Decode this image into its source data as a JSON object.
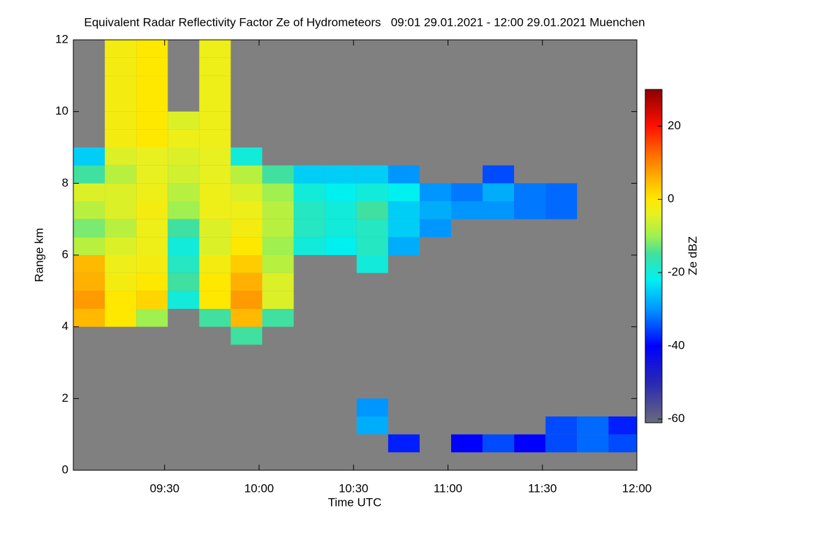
{
  "chart_data": {
    "type": "heatmap",
    "title": "Equivalent Radar Reflectivity Factor Ze of Hydrometeors   09:01 29.01.2021 - 12:00 29.01.2021 Muenchen",
    "x_label": "Time UTC",
    "y_label": "Range km",
    "colorbar_label": "Ze dBZ",
    "xlim": [
      541,
      720
    ],
    "xticks": [
      {
        "value": 570,
        "label": "09:30"
      },
      {
        "value": 600,
        "label": "10:00"
      },
      {
        "value": 630,
        "label": "10:30"
      },
      {
        "value": 660,
        "label": "11:00"
      },
      {
        "value": 690,
        "label": "11:30"
      },
      {
        "value": 720,
        "label": "12:00"
      }
    ],
    "ylim": [
      0,
      12
    ],
    "yticks": [
      0,
      2,
      4,
      6,
      8,
      10,
      12
    ],
    "zlim": [
      -61,
      30
    ],
    "zticks": [
      20,
      0,
      -20,
      -40,
      -60
    ],
    "plot_background": "#808080",
    "colormap": [
      {
        "value": -61,
        "color": "#6a6a7a"
      },
      {
        "value": -50,
        "color": "#2828b4"
      },
      {
        "value": -40,
        "color": "#0000ff"
      },
      {
        "value": -30,
        "color": "#0096ff"
      },
      {
        "value": -22,
        "color": "#00f0f0"
      },
      {
        "value": -15,
        "color": "#40e0a0"
      },
      {
        "value": -10,
        "color": "#a0f050"
      },
      {
        "value": -4,
        "color": "#e8f020"
      },
      {
        "value": 0,
        "color": "#ffe800"
      },
      {
        "value": 6,
        "color": "#ffb000"
      },
      {
        "value": 12,
        "color": "#ff7000"
      },
      {
        "value": 20,
        "color": "#ff1000"
      },
      {
        "value": 30,
        "color": "#8c0000"
      }
    ],
    "x": [
      541,
      551,
      561,
      571,
      581,
      591,
      601,
      611,
      621,
      631,
      641,
      651,
      661,
      671,
      681,
      691,
      701,
      711
    ],
    "y": [
      0,
      0.5,
      1,
      1.5,
      2,
      2.5,
      3,
      3.5,
      4,
      4.5,
      5,
      5.5,
      6,
      6.5,
      7,
      7.5,
      8,
      8.5,
      9,
      9.5,
      10,
      10.5,
      11,
      11.5
    ],
    "z": [
      [
        null,
        null,
        null,
        null,
        null,
        null,
        null,
        null,
        null,
        null,
        null,
        null,
        null,
        null,
        null,
        null,
        null,
        null
      ],
      [
        null,
        null,
        null,
        null,
        null,
        null,
        null,
        null,
        null,
        null,
        -38,
        null,
        -40,
        -35,
        -40,
        -35,
        -33,
        -35
      ],
      [
        null,
        null,
        null,
        null,
        null,
        null,
        null,
        null,
        null,
        -28,
        null,
        null,
        null,
        null,
        null,
        -35,
        -33,
        -38
      ],
      [
        null,
        null,
        null,
        null,
        null,
        null,
        null,
        null,
        null,
        -30,
        null,
        null,
        null,
        null,
        null,
        null,
        null,
        null
      ],
      [
        null,
        null,
        null,
        null,
        null,
        null,
        null,
        null,
        null,
        null,
        null,
        null,
        null,
        null,
        null,
        null,
        null,
        null
      ],
      [
        null,
        null,
        null,
        null,
        null,
        null,
        null,
        null,
        null,
        null,
        null,
        null,
        null,
        null,
        null,
        null,
        null,
        null
      ],
      [
        null,
        null,
        null,
        null,
        null,
        null,
        null,
        null,
        null,
        null,
        null,
        null,
        null,
        null,
        null,
        null,
        null,
        null
      ],
      [
        null,
        null,
        null,
        null,
        null,
        -15,
        null,
        null,
        null,
        null,
        null,
        null,
        null,
        null,
        null,
        null,
        null,
        null
      ],
      [
        5,
        0,
        -10,
        null,
        -15,
        5,
        -15,
        null,
        null,
        null,
        null,
        null,
        null,
        null,
        null,
        null,
        null,
        null
      ],
      [
        8,
        0,
        2,
        -20,
        0,
        8,
        -5,
        null,
        null,
        null,
        null,
        null,
        null,
        null,
        null,
        null,
        null,
        null
      ],
      [
        6,
        -2,
        0,
        -15,
        0,
        6,
        -5,
        null,
        null,
        null,
        null,
        null,
        null,
        null,
        null,
        null,
        null,
        null
      ],
      [
        5,
        -3,
        -2,
        -18,
        -2,
        3,
        -8,
        null,
        null,
        -20,
        null,
        null,
        null,
        null,
        null,
        null,
        null,
        null
      ],
      [
        -8,
        -5,
        -3,
        -20,
        -5,
        0,
        -10,
        -20,
        -22,
        -18,
        -28,
        null,
        null,
        null,
        null,
        null,
        null,
        null
      ],
      [
        -12,
        -8,
        -3,
        -15,
        -5,
        -2,
        -8,
        -18,
        -20,
        -18,
        -25,
        -30,
        null,
        null,
        null,
        null,
        null,
        null
      ],
      [
        -8,
        -5,
        -2,
        -10,
        -3,
        -3,
        -8,
        -18,
        -20,
        -15,
        -25,
        -28,
        -30,
        -30,
        -32,
        -33,
        null,
        null
      ],
      [
        -5,
        -5,
        -3,
        -8,
        -3,
        -5,
        -10,
        -20,
        -22,
        -20,
        -22,
        -30,
        -32,
        -28,
        -32,
        -33,
        null,
        null
      ],
      [
        -15,
        -8,
        -4,
        -6,
        -4,
        -8,
        -15,
        -25,
        -25,
        -25,
        -30,
        null,
        null,
        -35,
        null,
        null,
        null,
        null
      ],
      [
        -25,
        -5,
        -4,
        -5,
        -4,
        -20,
        null,
        null,
        null,
        null,
        null,
        null,
        null,
        null,
        null,
        null,
        null,
        null
      ],
      [
        null,
        -2,
        0,
        -3,
        -3,
        null,
        null,
        null,
        null,
        null,
        null,
        null,
        null,
        null,
        null,
        null,
        null,
        null
      ],
      [
        null,
        -2,
        0,
        -5,
        -3,
        null,
        null,
        null,
        null,
        null,
        null,
        null,
        null,
        null,
        null,
        null,
        null,
        null
      ],
      [
        null,
        -2,
        0,
        null,
        -3,
        null,
        null,
        null,
        null,
        null,
        null,
        null,
        null,
        null,
        null,
        null,
        null,
        null
      ],
      [
        null,
        -2,
        0,
        null,
        -3,
        null,
        null,
        null,
        null,
        null,
        null,
        null,
        null,
        null,
        null,
        null,
        null,
        null
      ],
      [
        null,
        -2,
        0,
        null,
        -3,
        null,
        null,
        null,
        null,
        null,
        null,
        null,
        null,
        null,
        null,
        null,
        null,
        null
      ],
      [
        null,
        -2,
        0,
        null,
        -3,
        null,
        null,
        null,
        null,
        null,
        null,
        null,
        null,
        null,
        null,
        null,
        null,
        null
      ]
    ]
  }
}
